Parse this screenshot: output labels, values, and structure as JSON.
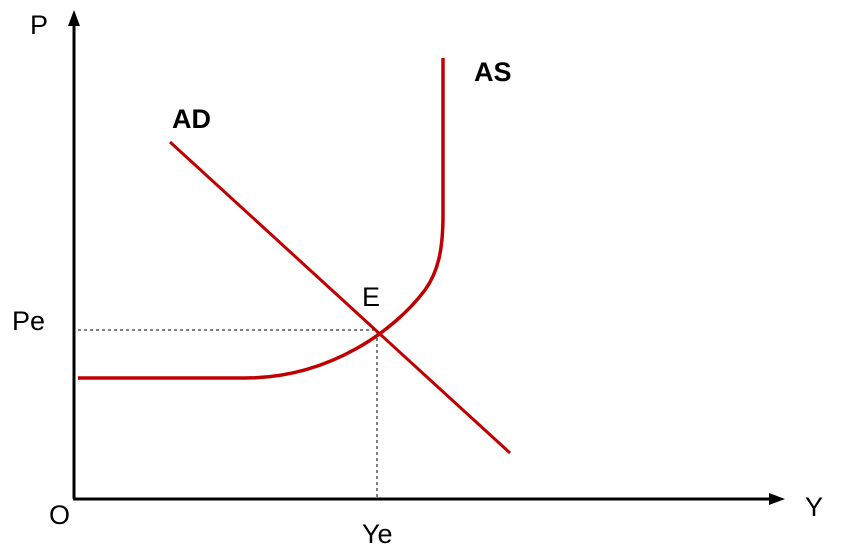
{
  "diagram": {
    "title": "",
    "labels": {
      "y_axis": "P",
      "x_axis": "Y",
      "origin": "O",
      "price_eq": "Pe",
      "output_eq": "Ye",
      "equilibrium": "E",
      "ad_curve": "AD",
      "as_curve": "AS"
    },
    "colors": {
      "curve": "#c00000",
      "axis": "#000000",
      "guide": "#000000"
    },
    "curves": [
      "aggregate-demand",
      "aggregate-supply"
    ],
    "guides": "dashed"
  }
}
